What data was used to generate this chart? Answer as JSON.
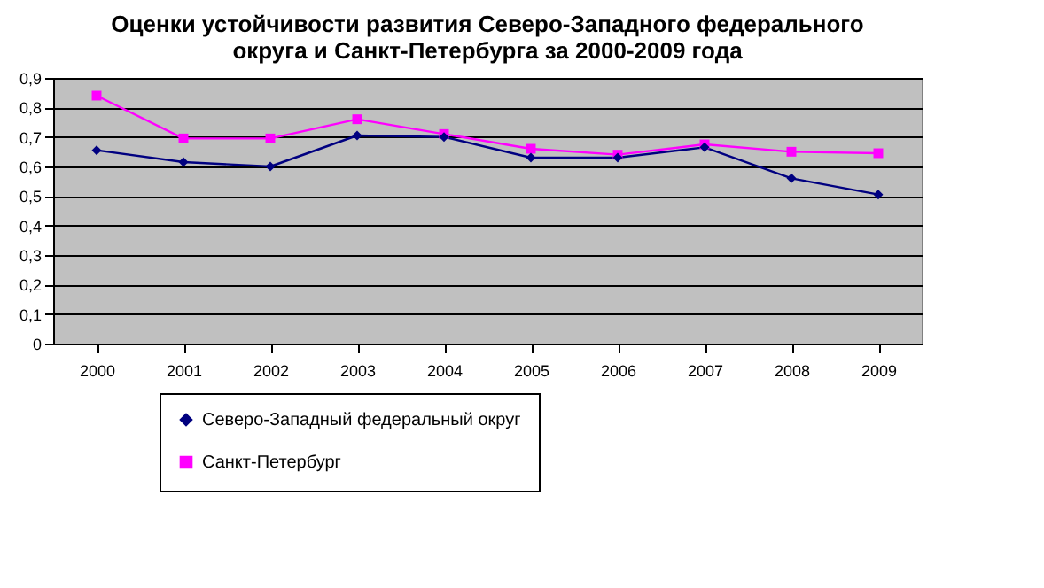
{
  "chart_data": {
    "type": "line",
    "title": "Оценки устойчивости развития Северо-Западного федерального\nокруга и Санкт-Петербурга за 2000-2009 года",
    "categories": [
      "2000",
      "2001",
      "2002",
      "2003",
      "2004",
      "2005",
      "2006",
      "2007",
      "2008",
      "2009"
    ],
    "series": [
      {
        "name": "Северо-Западный федеральный округ",
        "color": "#000080",
        "marker": "diamond",
        "values": [
          0.655,
          0.615,
          0.6,
          0.705,
          0.7,
          0.63,
          0.63,
          0.665,
          0.56,
          0.505
        ]
      },
      {
        "name": "Санкт-Петербург",
        "color": "#ff00ff",
        "marker": "square",
        "values": [
          0.84,
          0.695,
          0.695,
          0.76,
          0.71,
          0.66,
          0.64,
          0.675,
          0.65,
          0.645
        ]
      }
    ],
    "ylim": [
      0,
      0.9
    ],
    "yticks": [
      {
        "value": 0,
        "label": "0"
      },
      {
        "value": 0.1,
        "label": "0,1"
      },
      {
        "value": 0.2,
        "label": "0,2"
      },
      {
        "value": 0.3,
        "label": "0,3"
      },
      {
        "value": 0.4,
        "label": "0,4"
      },
      {
        "value": 0.5,
        "label": "0,5"
      },
      {
        "value": 0.6,
        "label": "0,6"
      },
      {
        "value": 0.7,
        "label": "0,7"
      },
      {
        "value": 0.8,
        "label": "0,8"
      },
      {
        "value": 0.9,
        "label": "0,9"
      }
    ],
    "grid": "y",
    "legend": "bottom left",
    "line_style": "solid"
  }
}
